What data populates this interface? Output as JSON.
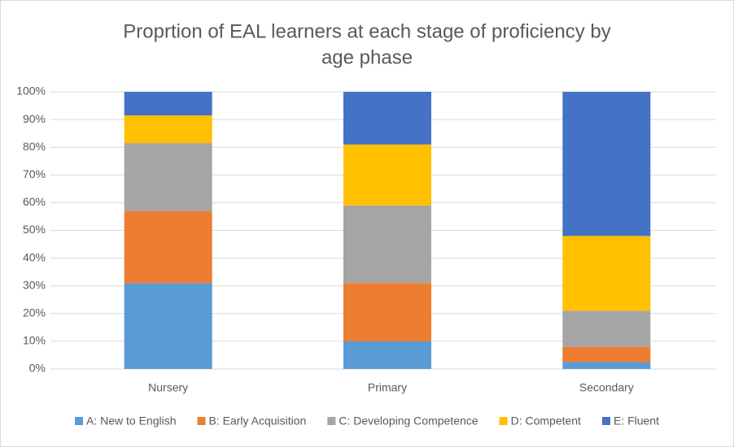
{
  "chart_data": {
    "type": "stacked_bar",
    "title": [
      "Proprtion of EAL learners at each stage of proficiency by",
      "age phase"
    ],
    "categories": [
      "Nursery",
      "Primary",
      "Secondary"
    ],
    "series": [
      {
        "name": "A: New to English",
        "color": "#5b9bd5",
        "values": [
          31,
          10,
          2.5
        ]
      },
      {
        "name": "B: Early Acquisition",
        "color": "#ed7d31",
        "values": [
          26,
          21,
          5.5
        ]
      },
      {
        "name": "C: Developing Competence",
        "color": "#a5a5a5",
        "values": [
          24.5,
          28,
          13
        ]
      },
      {
        "name": "D: Competent",
        "color": "#ffc000",
        "values": [
          10,
          22,
          27
        ]
      },
      {
        "name": "E: Fluent",
        "color": "#4472c4",
        "values": [
          8.5,
          19,
          52
        ]
      }
    ],
    "ylim": [
      0,
      100
    ],
    "yticks": [
      {
        "value": 0,
        "label": "0%"
      },
      {
        "value": 10,
        "label": "10%"
      },
      {
        "value": 20,
        "label": "20%"
      },
      {
        "value": 30,
        "label": "30%"
      },
      {
        "value": 40,
        "label": "40%"
      },
      {
        "value": 50,
        "label": "50%"
      },
      {
        "value": 60,
        "label": "60%"
      },
      {
        "value": 70,
        "label": "70%"
      },
      {
        "value": 80,
        "label": "80%"
      },
      {
        "value": 90,
        "label": "90%"
      },
      {
        "value": 100,
        "label": "100%"
      }
    ],
    "grid": true,
    "legend": "bottom"
  }
}
